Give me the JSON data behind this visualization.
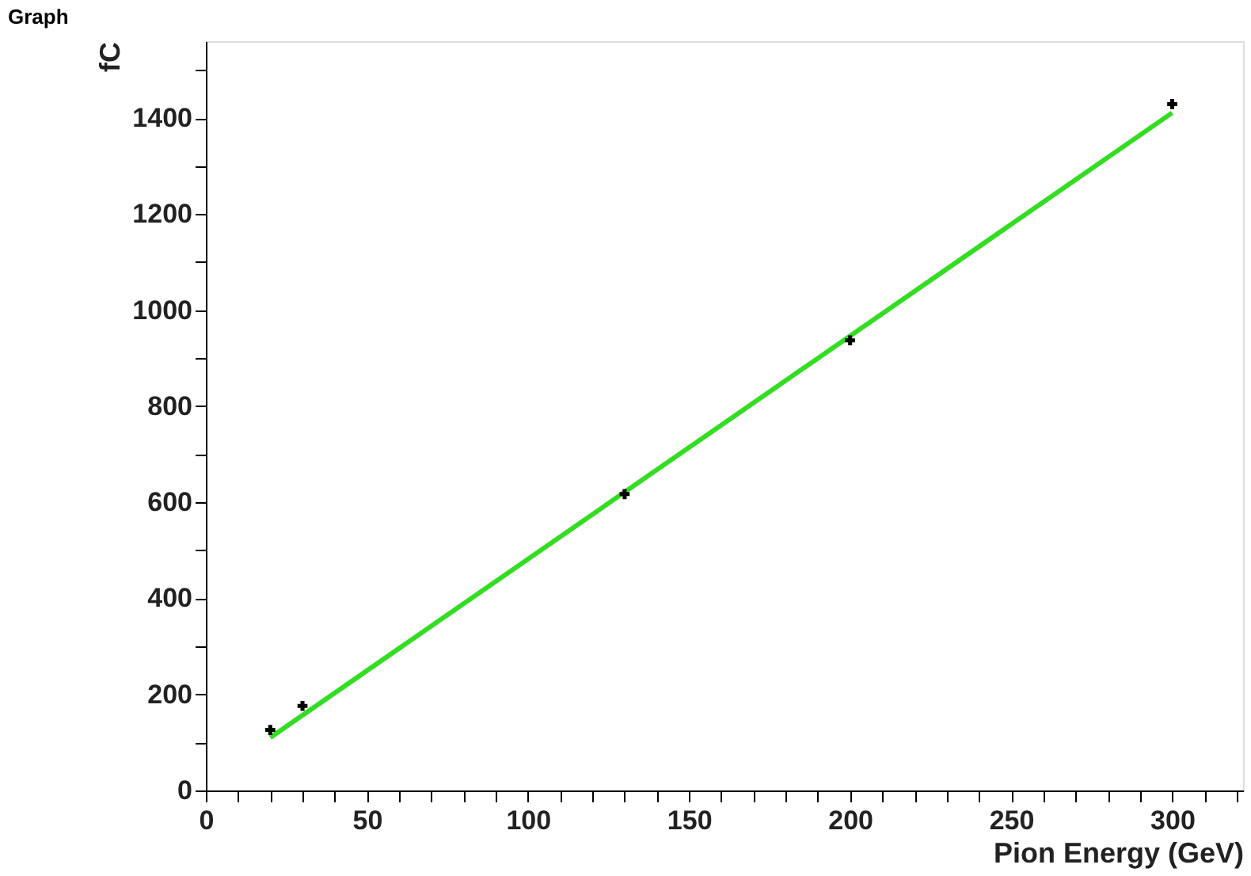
{
  "chart_data": {
    "type": "scatter",
    "title": "Graph",
    "xlabel": "Pion Energy (GeV)",
    "ylabel": "fC",
    "xlim": [
      0,
      322
    ],
    "ylim": [
      0,
      1560
    ],
    "xticks": [
      0,
      {
        "value": 10,
        "label": null
      },
      {
        "value": 20,
        "label": null
      },
      {
        "value": 30,
        "label": null
      },
      {
        "value": 40,
        "label": null
      },
      50,
      {
        "value": 60,
        "label": null
      },
      {
        "value": 70,
        "label": null
      },
      {
        "value": 80,
        "label": null
      },
      {
        "value": 90,
        "label": null
      },
      100,
      {
        "value": 110,
        "label": null
      },
      {
        "value": 120,
        "label": null
      },
      {
        "value": 130,
        "label": null
      },
      {
        "value": 140,
        "label": null
      },
      150,
      {
        "value": 160,
        "label": null
      },
      {
        "value": 170,
        "label": null
      },
      {
        "value": 180,
        "label": null
      },
      {
        "value": 190,
        "label": null
      },
      200,
      {
        "value": 210,
        "label": null
      },
      {
        "value": 220,
        "label": null
      },
      {
        "value": 230,
        "label": null
      },
      {
        "value": 240,
        "label": null
      },
      250,
      {
        "value": 260,
        "label": null
      },
      {
        "value": 270,
        "label": null
      },
      {
        "value": 280,
        "label": null
      },
      {
        "value": 290,
        "label": null
      },
      300,
      {
        "value": 310,
        "label": null
      },
      {
        "value": 320,
        "label": null
      }
    ],
    "yticks": [
      0,
      {
        "value": 100,
        "label": null
      },
      200,
      {
        "value": 300,
        "label": null
      },
      400,
      {
        "value": 500,
        "label": null
      },
      600,
      {
        "value": 700,
        "label": null
      },
      800,
      {
        "value": 900,
        "label": null
      },
      1000,
      {
        "value": 1100,
        "label": null
      },
      1200,
      {
        "value": 1300,
        "label": null
      },
      1400,
      {
        "value": 1500,
        "label": null
      }
    ],
    "grid": false,
    "marker": "cross",
    "series": [
      {
        "color": "#000000",
        "x": [
          20,
          30,
          130,
          200,
          300
        ],
        "values": [
          126,
          176,
          617,
          937,
          1429
        ]
      },
      {
        "type": "line",
        "color": "#33dd22",
        "marker": "none",
        "line_style": "solid",
        "x": [
          20,
          300
        ],
        "values": [
          110,
          1411
        ]
      }
    ]
  }
}
